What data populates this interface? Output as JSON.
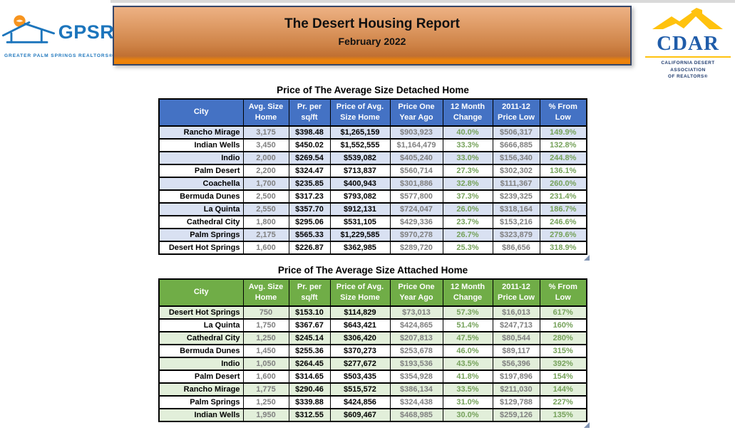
{
  "header": {
    "gpsr": {
      "acronym": "GPSR",
      "tagline": "GREATER PALM SPRINGS REALTORS®"
    },
    "banner": {
      "title": "The Desert Housing Report",
      "subtitle": "February 2022"
    },
    "cdar": {
      "acronym": "CDAR",
      "tagline_line1": "CALIFORNIA DESERT ASSOCIATION",
      "tagline_line2": "OF REALTORS®"
    }
  },
  "colors": {
    "blue_header": "#4472C4",
    "blue_row": "#D9E1F2",
    "green_header": "#70AD47",
    "green_row": "#E2EFDA",
    "muted_text": "#808080",
    "positive_text": "#76A25B",
    "banner_orange_top": "#EDB184",
    "banner_orange_bottom": "#E87F08"
  },
  "columns": [
    {
      "key": "city",
      "lines": [
        "City"
      ],
      "style": "city"
    },
    {
      "key": "avg_size",
      "lines": [
        "Avg. Size",
        "Home"
      ],
      "style": "muted"
    },
    {
      "key": "pr_per_sqft",
      "lines": [
        "Pr. per",
        "sq/ft"
      ],
      "style": "strong"
    },
    {
      "key": "price_avg",
      "lines": [
        "Price of Avg.",
        "Size Home"
      ],
      "style": "strong"
    },
    {
      "key": "price_year_ago",
      "lines": [
        "Price One",
        "Year Ago"
      ],
      "style": "muted"
    },
    {
      "key": "change_12mo",
      "lines": [
        "12 Month",
        "Change"
      ],
      "style": "positive"
    },
    {
      "key": "price_low",
      "lines": [
        "2011-12",
        "Price Low"
      ],
      "style": "muted"
    },
    {
      "key": "pct_from_low",
      "lines": [
        "% From",
        "Low"
      ],
      "style": "positive"
    }
  ],
  "tables": [
    {
      "title": "Price of The Average Size Detached Home",
      "rows": [
        {
          "city": "Rancho Mirage",
          "avg_size": "3,175",
          "pr_per_sqft": "$398.48",
          "price_avg": "$1,265,159",
          "price_year_ago": "$903,923",
          "change_12mo": "40.0%",
          "price_low": "$506,317",
          "pct_from_low": "149.9%"
        },
        {
          "city": "Indian Wells",
          "avg_size": "3,450",
          "pr_per_sqft": "$450.02",
          "price_avg": "$1,552,555",
          "price_year_ago": "$1,164,479",
          "change_12mo": "33.3%",
          "price_low": "$666,885",
          "pct_from_low": "132.8%"
        },
        {
          "city": "Indio",
          "avg_size": "2,000",
          "pr_per_sqft": "$269.54",
          "price_avg": "$539,082",
          "price_year_ago": "$405,240",
          "change_12mo": "33.0%",
          "price_low": "$156,340",
          "pct_from_low": "244.8%"
        },
        {
          "city": "Palm Desert",
          "avg_size": "2,200",
          "pr_per_sqft": "$324.47",
          "price_avg": "$713,837",
          "price_year_ago": "$560,714",
          "change_12mo": "27.3%",
          "price_low": "$302,302",
          "pct_from_low": "136.1%"
        },
        {
          "city": "Coachella",
          "avg_size": "1,700",
          "pr_per_sqft": "$235.85",
          "price_avg": "$400,943",
          "price_year_ago": "$301,886",
          "change_12mo": "32.8%",
          "price_low": "$111,367",
          "pct_from_low": "260.0%"
        },
        {
          "city": "Bermuda Dunes",
          "avg_size": "2,500",
          "pr_per_sqft": "$317.23",
          "price_avg": "$793,082",
          "price_year_ago": "$577,800",
          "change_12mo": "37.3%",
          "price_low": "$239,325",
          "pct_from_low": "231.4%"
        },
        {
          "city": "La Quinta",
          "avg_size": "2,550",
          "pr_per_sqft": "$357.70",
          "price_avg": "$912,131",
          "price_year_ago": "$724,047",
          "change_12mo": "26.0%",
          "price_low": "$318,164",
          "pct_from_low": "186.7%"
        },
        {
          "city": "Cathedral City",
          "avg_size": "1,800",
          "pr_per_sqft": "$295.06",
          "price_avg": "$531,105",
          "price_year_ago": "$429,336",
          "change_12mo": "23.7%",
          "price_low": "$153,216",
          "pct_from_low": "246.6%"
        },
        {
          "city": "Palm Springs",
          "avg_size": "2,175",
          "pr_per_sqft": "$565.33",
          "price_avg": "$1,229,585",
          "price_year_ago": "$970,278",
          "change_12mo": "26.7%",
          "price_low": "$323,879",
          "pct_from_low": "279.6%"
        },
        {
          "city": "Desert Hot Springs",
          "avg_size": "1,600",
          "pr_per_sqft": "$226.87",
          "price_avg": "$362,985",
          "price_year_ago": "$289,720",
          "change_12mo": "25.3%",
          "price_low": "$86,656",
          "pct_from_low": "318.9%"
        }
      ]
    },
    {
      "title": "Price of The Average Size Attached Home",
      "rows": [
        {
          "city": "Desert Hot Springs",
          "avg_size": "750",
          "pr_per_sqft": "$153.10",
          "price_avg": "$114,829",
          "price_year_ago": "$73,013",
          "change_12mo": "57.3%",
          "price_low": "$16,013",
          "pct_from_low": "617%"
        },
        {
          "city": "La Quinta",
          "avg_size": "1,750",
          "pr_per_sqft": "$367.67",
          "price_avg": "$643,421",
          "price_year_ago": "$424,865",
          "change_12mo": "51.4%",
          "price_low": "$247,713",
          "pct_from_low": "160%"
        },
        {
          "city": "Cathedral City",
          "avg_size": "1,250",
          "pr_per_sqft": "$245.14",
          "price_avg": "$306,420",
          "price_year_ago": "$207,813",
          "change_12mo": "47.5%",
          "price_low": "$80,544",
          "pct_from_low": "280%"
        },
        {
          "city": "Bermuda Dunes",
          "avg_size": "1,450",
          "pr_per_sqft": "$255.36",
          "price_avg": "$370,273",
          "price_year_ago": "$253,678",
          "change_12mo": "46.0%",
          "price_low": "$89,117",
          "pct_from_low": "315%"
        },
        {
          "city": "Indio",
          "avg_size": "1,050",
          "pr_per_sqft": "$264.45",
          "price_avg": "$277,672",
          "price_year_ago": "$193,536",
          "change_12mo": "43.5%",
          "price_low": "$56,396",
          "pct_from_low": "392%"
        },
        {
          "city": "Palm Desert",
          "avg_size": "1,600",
          "pr_per_sqft": "$314.65",
          "price_avg": "$503,435",
          "price_year_ago": "$354,928",
          "change_12mo": "41.8%",
          "price_low": "$197,896",
          "pct_from_low": "154%"
        },
        {
          "city": "Rancho Mirage",
          "avg_size": "1,775",
          "pr_per_sqft": "$290.46",
          "price_avg": "$515,572",
          "price_year_ago": "$386,134",
          "change_12mo": "33.5%",
          "price_low": "$211,030",
          "pct_from_low": "144%"
        },
        {
          "city": "Palm Springs",
          "avg_size": "1,250",
          "pr_per_sqft": "$339.88",
          "price_avg": "$424,856",
          "price_year_ago": "$324,438",
          "change_12mo": "31.0%",
          "price_low": "$129,788",
          "pct_from_low": "227%"
        },
        {
          "city": "Indian Wells",
          "avg_size": "1,950",
          "pr_per_sqft": "$312.55",
          "price_avg": "$609,467",
          "price_year_ago": "$468,985",
          "change_12mo": "30.0%",
          "price_low": "$259,126",
          "pct_from_low": "135%"
        }
      ]
    }
  ]
}
